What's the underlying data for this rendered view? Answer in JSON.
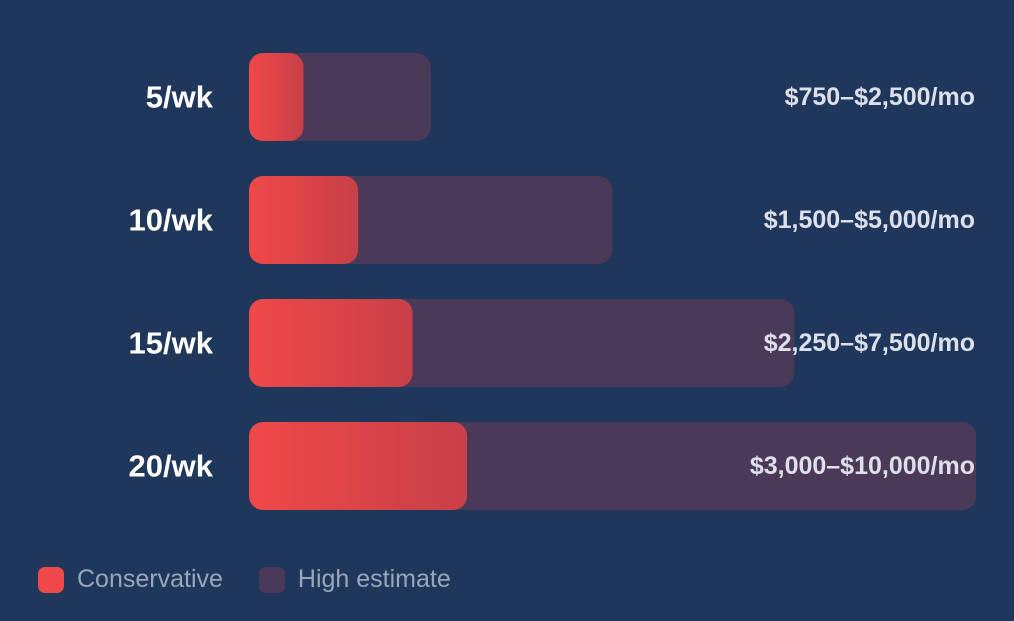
{
  "chart_data": {
    "type": "bar",
    "orientation": "horizontal",
    "categories": [
      "5/wk",
      "10/wk",
      "15/wk",
      "20/wk"
    ],
    "series": [
      {
        "name": "Conservative",
        "values": [
          750,
          1500,
          2250,
          3000
        ],
        "color": "#ef4848"
      },
      {
        "name": "High estimate",
        "values": [
          2500,
          5000,
          7500,
          10000
        ],
        "color": "#4a3a57"
      }
    ],
    "data_labels": [
      "$750–$2,500/mo",
      "$1,500–$5,000/mo",
      "$2,250–$7,500/mo",
      "$3,000–$10,000/mo"
    ],
    "xlim": [
      0,
      10000
    ],
    "grid": false,
    "legend_position": "bottom-left"
  },
  "legend": {
    "items": [
      {
        "label": "Conservative",
        "color": "#ef4848"
      },
      {
        "label": "High estimate",
        "color": "#4a3a57"
      }
    ]
  },
  "colors": {
    "background": "#1f375a",
    "conservative_gradient_end": "#c84049"
  }
}
